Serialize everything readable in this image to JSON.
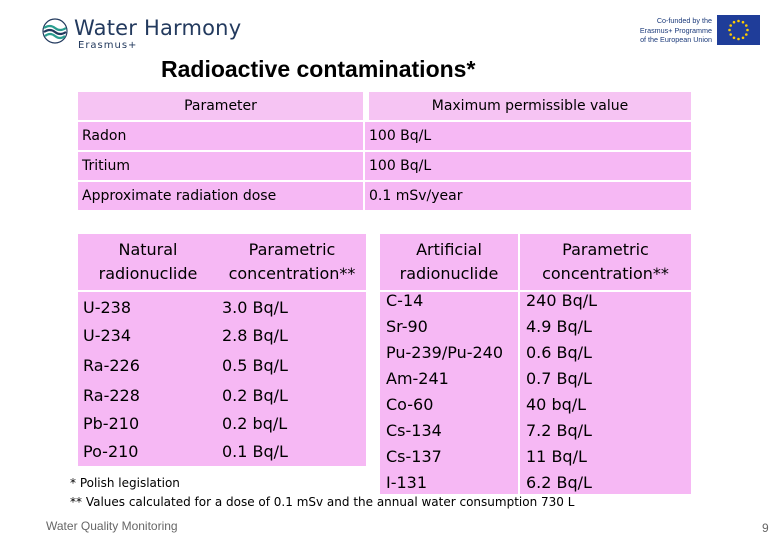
{
  "header": {
    "logo_name": "Water Harmony",
    "logo_sub": "Erasmus+",
    "eu_text": [
      "Co-funded by the",
      "Erasmus+ Programme",
      "of the European Union"
    ],
    "eu_flag_color": "#1f3d99",
    "eu_star_color": "#ffcc00"
  },
  "title": "Radioactive contaminations*",
  "top_table": {
    "headers": [
      "Parameter",
      "Maximum permissible value"
    ],
    "rows": [
      [
        "Radon",
        "100 Bq/L"
      ],
      [
        "Tritium",
        "100 Bq/L"
      ],
      [
        "Approximate radiation dose",
        "0.1 mSv/year"
      ]
    ]
  },
  "natural_table": {
    "headers": [
      "Natural radionuclide",
      "Parametric concentration**"
    ],
    "rows": [
      [
        "U-238",
        "3.0 Bq/L"
      ],
      [
        "U-234",
        "2.8 Bq/L"
      ],
      [
        "Ra-226",
        "0.5 Bq/L"
      ],
      [
        "Ra-228",
        "0.2 Bq/L"
      ],
      [
        "Pb-210",
        "0.2 bq/L"
      ],
      [
        "Po-210",
        "0.1 Bq/L"
      ]
    ]
  },
  "artificial_table": {
    "headers": [
      "Artificial radionuclide",
      "Parametric concentration**"
    ],
    "rows": [
      [
        "C-14",
        "240 Bq/L"
      ],
      [
        "Sr-90",
        "4.9 Bq/L"
      ],
      [
        "Pu-239/Pu-240",
        "0.6 Bq/L"
      ],
      [
        "Am-241",
        "0.7 Bq/L"
      ],
      [
        "Co-60",
        "40 bq/L"
      ],
      [
        "Cs-134",
        "7.2 Bq/L"
      ],
      [
        "Cs-137",
        "11 Bq/L"
      ],
      [
        "I-131",
        "6.2 Bq/L"
      ]
    ]
  },
  "footnotes": {
    "note1": "* Polish legislation",
    "note2": "** Values calculated for a dose of 0.1 mSv and the annual water consumption 730 L"
  },
  "footer": {
    "left": "Water Quality Monitoring",
    "page": "9"
  },
  "colors": {
    "accent_pink": "#f6b8f4",
    "logo_blue": "#233a5e",
    "logo_teal": "#2a9d8f"
  }
}
